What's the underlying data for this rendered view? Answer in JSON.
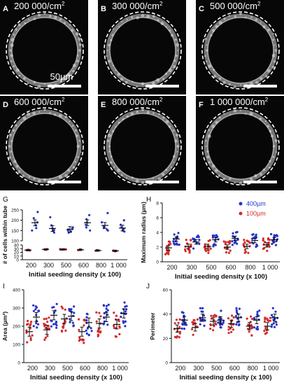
{
  "micrographs": [
    {
      "label": "A",
      "density": "200 000/cm",
      "sup": "2",
      "scale_text": "50µm"
    },
    {
      "label": "B",
      "density": "300 000/cm",
      "sup": "2",
      "scale_text": ""
    },
    {
      "label": "C",
      "density": "500 000/cm",
      "sup": "2",
      "scale_text": ""
    },
    {
      "label": "D",
      "density": "600 000/cm",
      "sup": "2",
      "scale_text": ""
    },
    {
      "label": "E",
      "density": "800 000/cm",
      "sup": "2",
      "scale_text": ""
    },
    {
      "label": "F",
      "density": "1 000 000/cm",
      "sup": "2",
      "scale_text": ""
    }
  ],
  "colors": {
    "blue": "#2433c8",
    "red": "#d42a2a",
    "orange": "#d86a1f",
    "mean_bar": "#111111",
    "micrograph_bg": "#070707",
    "tube_wall": "#cfcfcf",
    "dashed": "#ffffff",
    "box_shade": "#f6dcdc"
  },
  "legend": {
    "items": [
      {
        "label": "400µm",
        "color": "#2433c8"
      },
      {
        "label": "100µm",
        "color": "#d42a2a"
      }
    ],
    "placement": "top-right of panel H"
  },
  "chart_data": [
    {
      "panel": "G",
      "type": "scatter",
      "ylabel": "# of cells within tube",
      "xlabel": "Initial seeding density (x 100)",
      "categories": [
        "200",
        "300",
        "500",
        "600",
        "800",
        "1 000"
      ],
      "broken_axis": true,
      "yticks_top": [
        100,
        150,
        200,
        250
      ],
      "yticks_bottom": [
        0,
        10,
        20,
        30,
        40
      ],
      "series": [
        {
          "name": "400µm",
          "color": "#2433c8",
          "means": [
            188,
            160,
            155,
            188,
            175,
            162
          ],
          "points": [
            [
              240,
              210,
              190,
              175,
              162,
              150
            ],
            [
              215,
              175,
              160,
              152,
              148,
              140
            ],
            [
              165,
              160,
              155,
              150,
              145,
              140
            ],
            [
              225,
              205,
              190,
              178,
              165,
              150
            ],
            [
              235,
              190,
              170,
              162,
              155,
              150
            ],
            [
              200,
              178,
              165,
              158,
              150,
              145
            ]
          ]
        },
        {
          "name": "100µm",
          "color": "#d42a2a",
          "means": [
            26,
            28,
            28,
            27,
            25,
            24
          ],
          "points": [
            [
              27,
              26,
              25,
              26
            ],
            [
              29,
              28,
              28,
              27
            ],
            [
              29,
              28,
              28,
              27
            ],
            [
              28,
              27,
              27,
              26
            ],
            [
              26,
              25,
              25,
              24
            ],
            [
              25,
              24,
              24,
              23
            ]
          ]
        }
      ]
    },
    {
      "panel": "H",
      "type": "scatter",
      "ylabel": "Maximum radius (µm)",
      "xlabel": "Initial seeding density (x 100)",
      "categories": [
        "200",
        "300",
        "500",
        "600",
        "800",
        "1 000"
      ],
      "ylim": [
        0,
        8
      ],
      "yticks": [
        0,
        2,
        4,
        6,
        8
      ],
      "series": [
        {
          "name": "400µm",
          "color": "#2433c8",
          "means": [
            3.1,
            2.7,
            3.0,
            3.2,
            2.9,
            3.0
          ]
        },
        {
          "name": "100µm",
          "color": "#d42a2a",
          "means": [
            1.9,
            2.1,
            2.1,
            2.0,
            2.1,
            2.3
          ]
        }
      ]
    },
    {
      "panel": "I",
      "type": "scatter",
      "ylabel": "Area (µm²)",
      "xlabel": "Initial seeding density (x 100)",
      "categories": [
        "200",
        "300",
        "500",
        "600",
        "800",
        "1 000"
      ],
      "ylim": [
        0,
        400
      ],
      "yticks": [
        0,
        100,
        200,
        300,
        400
      ],
      "series": [
        {
          "name": "400µm",
          "color": "#2433c8",
          "means": [
            250,
            260,
            255,
            220,
            250,
            270
          ]
        },
        {
          "name": "100µm",
          "color": "#d42a2a",
          "means": [
            170,
            180,
            240,
            170,
            215,
            210
          ]
        }
      ]
    },
    {
      "panel": "J",
      "type": "scatter",
      "ylabel": "Perimeter",
      "xlabel": "Initial seeding density (x 100)",
      "categories": [
        "200",
        "300",
        "500",
        "600",
        "800",
        "1 000"
      ],
      "ylim": [
        0,
        60
      ],
      "yticks": [
        0,
        20,
        40,
        60
      ],
      "series": [
        {
          "name": "400µm",
          "color": "#2433c8",
          "means": [
            35,
            37,
            35,
            37,
            35,
            37
          ]
        },
        {
          "name": "100µm",
          "color": "#d42a2a",
          "means": [
            28,
            29,
            34,
            32,
            30,
            30
          ]
        }
      ]
    }
  ]
}
